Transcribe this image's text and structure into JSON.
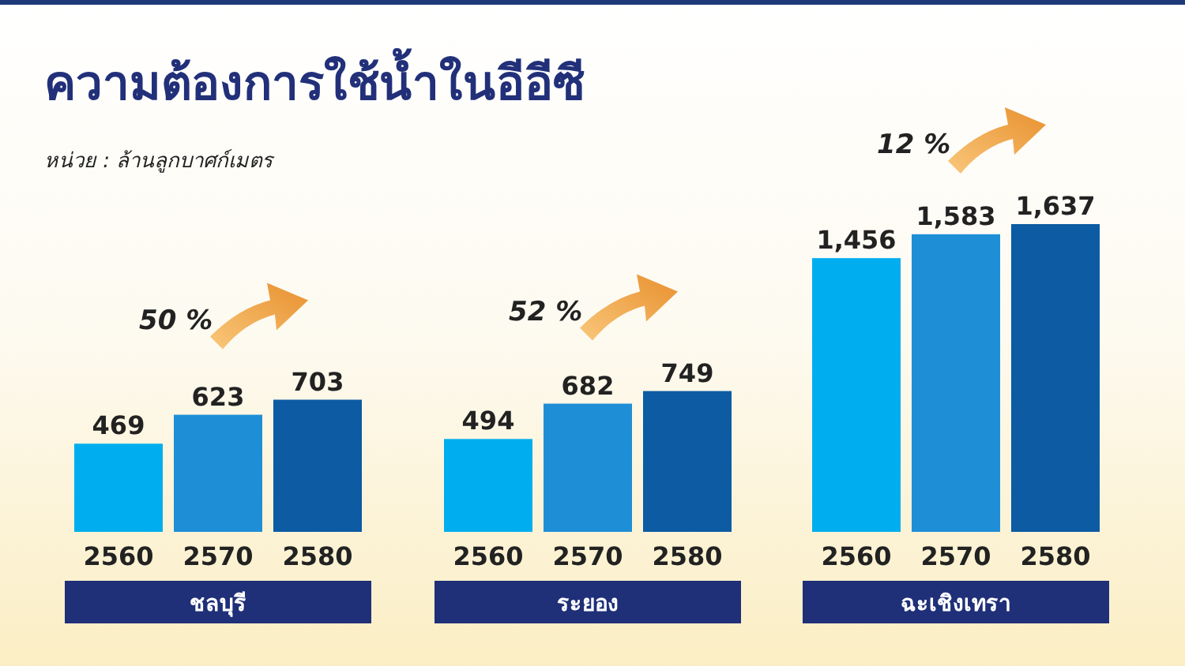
{
  "chart_data": {
    "type": "bar",
    "title": "ความต้องการใช้น้ำในอีอีซี",
    "subtitle": "หน่วย : ล้านลูกบาศก์เมตร",
    "categories": [
      "ชลบุรี",
      "ระยอง",
      "ฉะเชิงเทรา"
    ],
    "series": [
      {
        "name": "2560",
        "color": "#00aeef",
        "values": [
          469,
          494,
          1456
        ],
        "value_labels": [
          "469",
          "494",
          "1,456"
        ]
      },
      {
        "name": "2570",
        "color": "#1e8fd6",
        "values": [
          623,
          682,
          1583
        ],
        "value_labels": [
          "623",
          "682",
          "1,583"
        ]
      },
      {
        "name": "2580",
        "color": "#0c5ba3",
        "values": [
          703,
          749,
          1637
        ],
        "value_labels": [
          "703",
          "749",
          "1,637"
        ]
      }
    ],
    "annotations": [
      "50 %",
      "52 %",
      "12 %"
    ]
  }
}
